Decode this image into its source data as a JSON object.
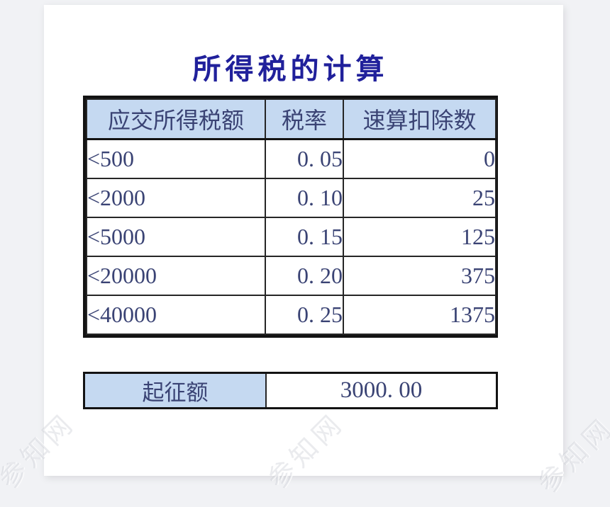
{
  "title": "所得税的计算",
  "table": {
    "headers": [
      "应交所得税额",
      "税率",
      "速算扣除数"
    ],
    "rows": [
      [
        "<500",
        "0. 05",
        "0"
      ],
      [
        "<2000",
        "0. 10",
        "25"
      ],
      [
        "<5000",
        "0. 15",
        "125"
      ],
      [
        "<20000",
        "0. 20",
        "375"
      ],
      [
        "<40000",
        "0. 25",
        "1375"
      ]
    ]
  },
  "threshold": {
    "label": "起征额",
    "value": "3000. 00"
  },
  "watermark": {
    "text": "参知网"
  },
  "colors": {
    "header_fill": "#c5d9f1",
    "title_text": "#20209b",
    "table_text": "#3a4374",
    "border": "#131313",
    "page_background": "#f1f2f5",
    "card_background": "#ffffff"
  }
}
